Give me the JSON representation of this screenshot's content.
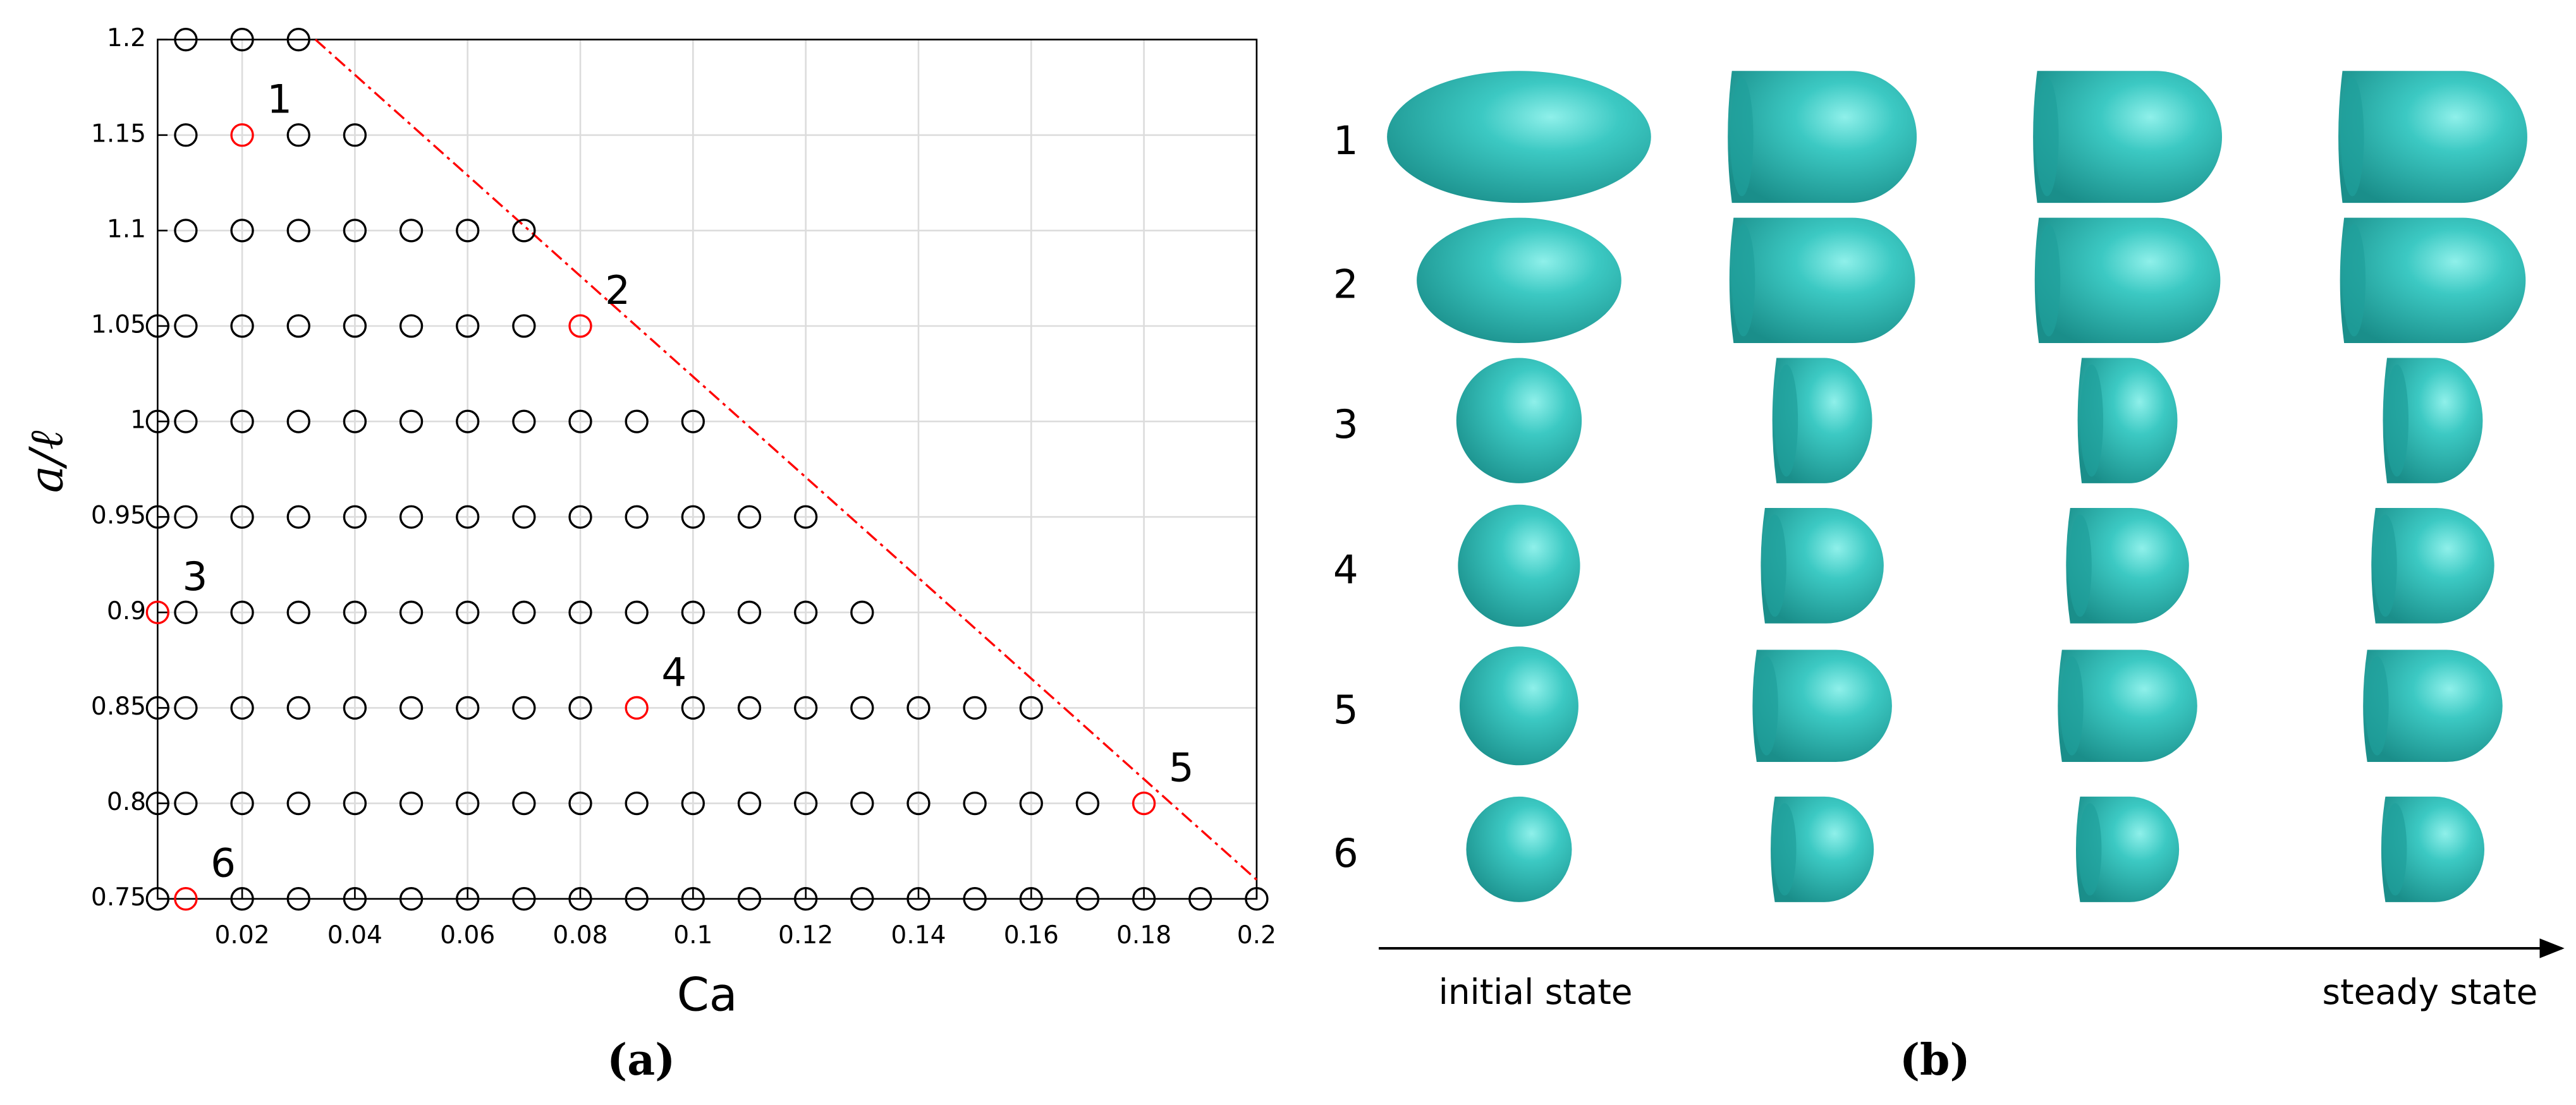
{
  "chart_data": {
    "type": "scatter",
    "caption": "(a)",
    "xlabel": "Ca",
    "ylabel": "a/ℓ",
    "xlim": [
      0.005,
      0.2
    ],
    "ylim": [
      0.75,
      1.2
    ],
    "xticks": [
      0.02,
      0.04,
      0.06,
      0.08,
      0.1,
      0.12,
      0.14,
      0.16,
      0.18,
      0.2
    ],
    "yticks": [
      0.75,
      0.8,
      0.85,
      0.9,
      0.95,
      1,
      1.05,
      1.1,
      1.15,
      1.2
    ],
    "grid": true,
    "series": [
      {
        "color": "#000000",
        "x": [
          0.01,
          0.02,
          0.03,
          0.01,
          0.03,
          0.04,
          0.01,
          0.02,
          0.03,
          0.04,
          0.05,
          0.06,
          0.07,
          0.005,
          0.01,
          0.02,
          0.03,
          0.04,
          0.05,
          0.06,
          0.07,
          0.005,
          0.01,
          0.02,
          0.03,
          0.04,
          0.05,
          0.06,
          0.07,
          0.08,
          0.09,
          0.1,
          0.005,
          0.01,
          0.02,
          0.03,
          0.04,
          0.05,
          0.06,
          0.07,
          0.08,
          0.09,
          0.1,
          0.11,
          0.12,
          0.01,
          0.02,
          0.03,
          0.04,
          0.05,
          0.06,
          0.07,
          0.08,
          0.09,
          0.1,
          0.11,
          0.12,
          0.13,
          0.005,
          0.01,
          0.02,
          0.03,
          0.04,
          0.05,
          0.06,
          0.07,
          0.08,
          0.1,
          0.11,
          0.12,
          0.13,
          0.14,
          0.15,
          0.16,
          0.005,
          0.01,
          0.02,
          0.03,
          0.04,
          0.05,
          0.06,
          0.07,
          0.08,
          0.09,
          0.1,
          0.11,
          0.12,
          0.13,
          0.14,
          0.15,
          0.16,
          0.17,
          0.005,
          0.02,
          0.03,
          0.04,
          0.05,
          0.06,
          0.07,
          0.08,
          0.09,
          0.1,
          0.11,
          0.12,
          0.13,
          0.14,
          0.15,
          0.16,
          0.17,
          0.18,
          0.19,
          0.2
        ],
        "y": [
          1.2,
          1.2,
          1.2,
          1.15,
          1.15,
          1.15,
          1.1,
          1.1,
          1.1,
          1.1,
          1.1,
          1.1,
          1.1,
          1.05,
          1.05,
          1.05,
          1.05,
          1.05,
          1.05,
          1.05,
          1.05,
          1,
          1,
          1,
          1,
          1,
          1,
          1,
          1,
          1,
          1,
          1,
          0.95,
          0.95,
          0.95,
          0.95,
          0.95,
          0.95,
          0.95,
          0.95,
          0.95,
          0.95,
          0.95,
          0.95,
          0.95,
          0.9,
          0.9,
          0.9,
          0.9,
          0.9,
          0.9,
          0.9,
          0.9,
          0.9,
          0.9,
          0.9,
          0.9,
          0.9,
          0.85,
          0.85,
          0.85,
          0.85,
          0.85,
          0.85,
          0.85,
          0.85,
          0.85,
          0.85,
          0.85,
          0.85,
          0.85,
          0.85,
          0.85,
          0.85,
          0.8,
          0.8,
          0.8,
          0.8,
          0.8,
          0.8,
          0.8,
          0.8,
          0.8,
          0.8,
          0.8,
          0.8,
          0.8,
          0.8,
          0.8,
          0.8,
          0.8,
          0.8,
          0.75,
          0.75,
          0.75,
          0.75,
          0.75,
          0.75,
          0.75,
          0.75,
          0.75,
          0.75,
          0.75,
          0.75,
          0.75,
          0.75,
          0.75,
          0.75,
          0.75,
          0.75,
          0.75,
          0.75
        ]
      },
      {
        "color": "#ff0000",
        "x": [
          0.02,
          0.08,
          0.005,
          0.09,
          0.18,
          0.01
        ],
        "y": [
          1.15,
          1.05,
          0.9,
          0.85,
          0.8,
          0.75
        ],
        "labels": [
          "1",
          "2",
          "3",
          "4",
          "5",
          "6"
        ]
      }
    ],
    "boundary": {
      "color": "#ff0000",
      "x": [
        0.033,
        0.2
      ],
      "y": [
        1.2,
        0.76
      ]
    }
  },
  "panel_b": {
    "caption": "(b)",
    "row_labels": [
      "1",
      "2",
      "3",
      "4",
      "5",
      "6"
    ],
    "start_label": "initial state",
    "end_label": "steady state"
  }
}
